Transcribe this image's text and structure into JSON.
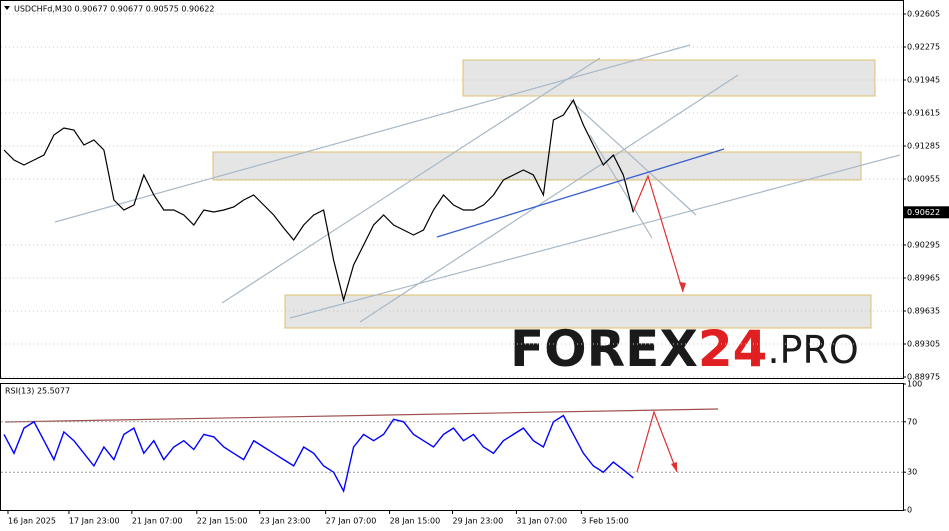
{
  "chart_data": [
    {
      "type": "line",
      "title": "USDCHFd,M30 0.90677 0.90677 0.90575 0.90622",
      "x": [
        0,
        1,
        2,
        3,
        4,
        5,
        6,
        7,
        8,
        9,
        10,
        11,
        12,
        13,
        14,
        15,
        16,
        17,
        18,
        19,
        20,
        21,
        22,
        23,
        24,
        25,
        26,
        27,
        28,
        29,
        30,
        31,
        32,
        33,
        34,
        35,
        36,
        37,
        38,
        39,
        40,
        41,
        42,
        43,
        44,
        45,
        46,
        47,
        48,
        49,
        50,
        51,
        52,
        53,
        54,
        55,
        56,
        57,
        58,
        59,
        60,
        61,
        62,
        63
      ],
      "values": [
        0.91245,
        0.91145,
        0.91095,
        0.91145,
        0.91195,
        0.91395,
        0.91465,
        0.91445,
        0.91295,
        0.91345,
        0.91245,
        0.90745,
        0.90645,
        0.90695,
        0.90995,
        0.90795,
        0.90645,
        0.90645,
        0.90595,
        0.90495,
        0.90645,
        0.90625,
        0.90645,
        0.90675,
        0.90745,
        0.90795,
        0.90695,
        0.90595,
        0.90465,
        0.90345,
        0.90495,
        0.90595,
        0.90645,
        0.90145,
        0.89745,
        0.90095,
        0.90295,
        0.90495,
        0.90595,
        0.90495,
        0.90445,
        0.90395,
        0.90445,
        0.90645,
        0.90795,
        0.90695,
        0.90645,
        0.90645,
        0.90695,
        0.90795,
        0.90945,
        0.90995,
        0.91045,
        0.90995,
        0.90795,
        0.91545,
        0.91595,
        0.91745,
        0.91495,
        0.91295,
        0.91095,
        0.91195,
        0.90995,
        0.90622
      ],
      "color": "#000000",
      "xlim": [
        0,
        90
      ],
      "ylim": [
        0.88965,
        0.92745
      ],
      "yticks": [
        0.92605,
        0.92275,
        0.91945,
        0.91615,
        0.91285,
        0.90955,
        0.90295,
        0.89965,
        0.89635,
        0.89305,
        0.88975
      ],
      "price_marker": 0.90622,
      "grid": true
    },
    {
      "type": "line",
      "title": "RSI(13) 25.5077",
      "x": [
        0,
        1,
        2,
        3,
        4,
        5,
        6,
        7,
        8,
        9,
        10,
        11,
        12,
        13,
        14,
        15,
        16,
        17,
        18,
        19,
        20,
        21,
        22,
        23,
        24,
        25,
        26,
        27,
        28,
        29,
        30,
        31,
        32,
        33,
        34,
        35,
        36,
        37,
        38,
        39,
        40,
        41,
        42,
        43,
        44,
        45,
        46,
        47,
        48,
        49,
        50,
        51,
        52,
        53,
        54,
        55,
        56,
        57,
        58,
        59,
        60,
        61,
        62,
        63
      ],
      "values": [
        60,
        45,
        65,
        70,
        55,
        40,
        62,
        55,
        45,
        35,
        50,
        40,
        60,
        65,
        45,
        55,
        40,
        50,
        55,
        48,
        60,
        58,
        50,
        45,
        40,
        55,
        50,
        45,
        40,
        35,
        50,
        45,
        35,
        30,
        15,
        50,
        60,
        55,
        60,
        72,
        70,
        60,
        55,
        50,
        60,
        65,
        55,
        60,
        50,
        45,
        55,
        60,
        65,
        55,
        50,
        70,
        75,
        60,
        45,
        35,
        30,
        38,
        32,
        25.5077
      ],
      "color": "#0000ff",
      "xlim": [
        0,
        90
      ],
      "ylim": [
        0,
        100
      ],
      "yticks": [
        100,
        70,
        30,
        0
      ],
      "levels": [
        70,
        30
      ],
      "xticks": [
        {
          "value": 0.4,
          "label": "16 Jan 2025"
        },
        {
          "value": 6.5,
          "label": "17 Jan 23:00"
        },
        {
          "value": 12.8,
          "label": "21 Jan 07:00"
        },
        {
          "value": 19.3,
          "label": "22 Jan 15:00"
        },
        {
          "value": 25.6,
          "label": "23 Jan 23:00"
        },
        {
          "value": 32.2,
          "label": "27 Jan 07:00"
        },
        {
          "value": 38.6,
          "label": "28 Jan 15:00"
        },
        {
          "value": 44.9,
          "label": "29 Jan 23:00"
        },
        {
          "value": 51.3,
          "label": "31 Jan 07:00"
        },
        {
          "value": 57.8,
          "label": "3 Feb 15:00"
        }
      ]
    }
  ],
  "watermark": {
    "part1": "FOREX",
    "part2": "24",
    "part3": ".PRO"
  }
}
